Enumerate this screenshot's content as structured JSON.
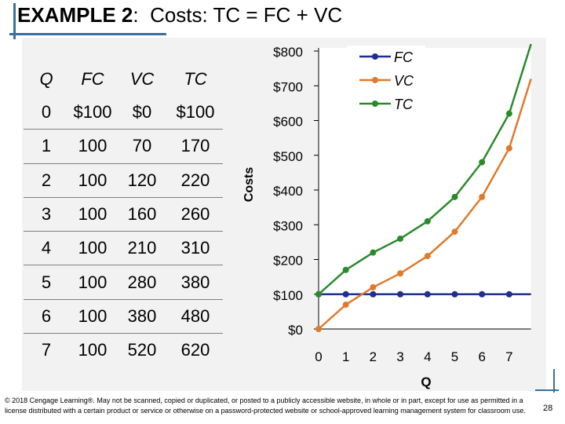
{
  "title": {
    "prefix": "EXAMPLE 2",
    "colon": ":",
    "text": "Costs: TC = FC + VC"
  },
  "table": {
    "headers": [
      "Q",
      "FC",
      "VC",
      "TC"
    ],
    "rows": [
      [
        "0",
        "$100",
        "$0",
        "$100"
      ],
      [
        "1",
        "100",
        "70",
        "170"
      ],
      [
        "2",
        "100",
        "120",
        "220"
      ],
      [
        "3",
        "100",
        "160",
        "260"
      ],
      [
        "4",
        "100",
        "210",
        "310"
      ],
      [
        "5",
        "100",
        "280",
        "380"
      ],
      [
        "6",
        "100",
        "380",
        "480"
      ],
      [
        "7",
        "100",
        "520",
        "620"
      ]
    ]
  },
  "chart_data": {
    "type": "line",
    "xlabel": "Q",
    "ylabel": "Costs",
    "x": [
      0,
      1,
      2,
      3,
      4,
      5,
      6,
      7
    ],
    "xlim": [
      0,
      7.8
    ],
    "ylim": [
      0,
      800
    ],
    "x_ticks": [
      "0",
      "1",
      "2",
      "3",
      "4",
      "5",
      "6",
      "7"
    ],
    "y_ticks": [
      {
        "value": 0,
        "label": "$0"
      },
      {
        "value": 100,
        "label": "$100"
      },
      {
        "value": 200,
        "label": "$200"
      },
      {
        "value": 300,
        "label": "$300"
      },
      {
        "value": 400,
        "label": "$400"
      },
      {
        "value": 500,
        "label": "$500"
      },
      {
        "value": 600,
        "label": "$600"
      },
      {
        "value": 700,
        "label": "$700"
      },
      {
        "value": 800,
        "label": "$800"
      }
    ],
    "series": [
      {
        "name": "FC",
        "color": "#1f2f8f",
        "values": [
          100,
          100,
          100,
          100,
          100,
          100,
          100,
          100
        ],
        "extended": [
          7.8,
          100
        ]
      },
      {
        "name": "VC",
        "color": "#e07a2a",
        "values": [
          0,
          70,
          120,
          160,
          210,
          280,
          380,
          520
        ],
        "extended": [
          7.8,
          720
        ]
      },
      {
        "name": "TC",
        "color": "#2a8a2a",
        "values": [
          100,
          170,
          220,
          260,
          310,
          380,
          480,
          620
        ],
        "extended": [
          7.8,
          820
        ]
      }
    ],
    "legend_position": "top-right",
    "grid": false
  },
  "footer": {
    "copyright": "© 2018 Cengage Learning®. May not be scanned, copied or duplicated, or posted to a publicly accessible website, in whole or in part, except for use as permitted in a license distributed with a certain product or service or otherwise on a password-protected website or school-approved learning management system for classroom use.",
    "page_number": "28"
  }
}
